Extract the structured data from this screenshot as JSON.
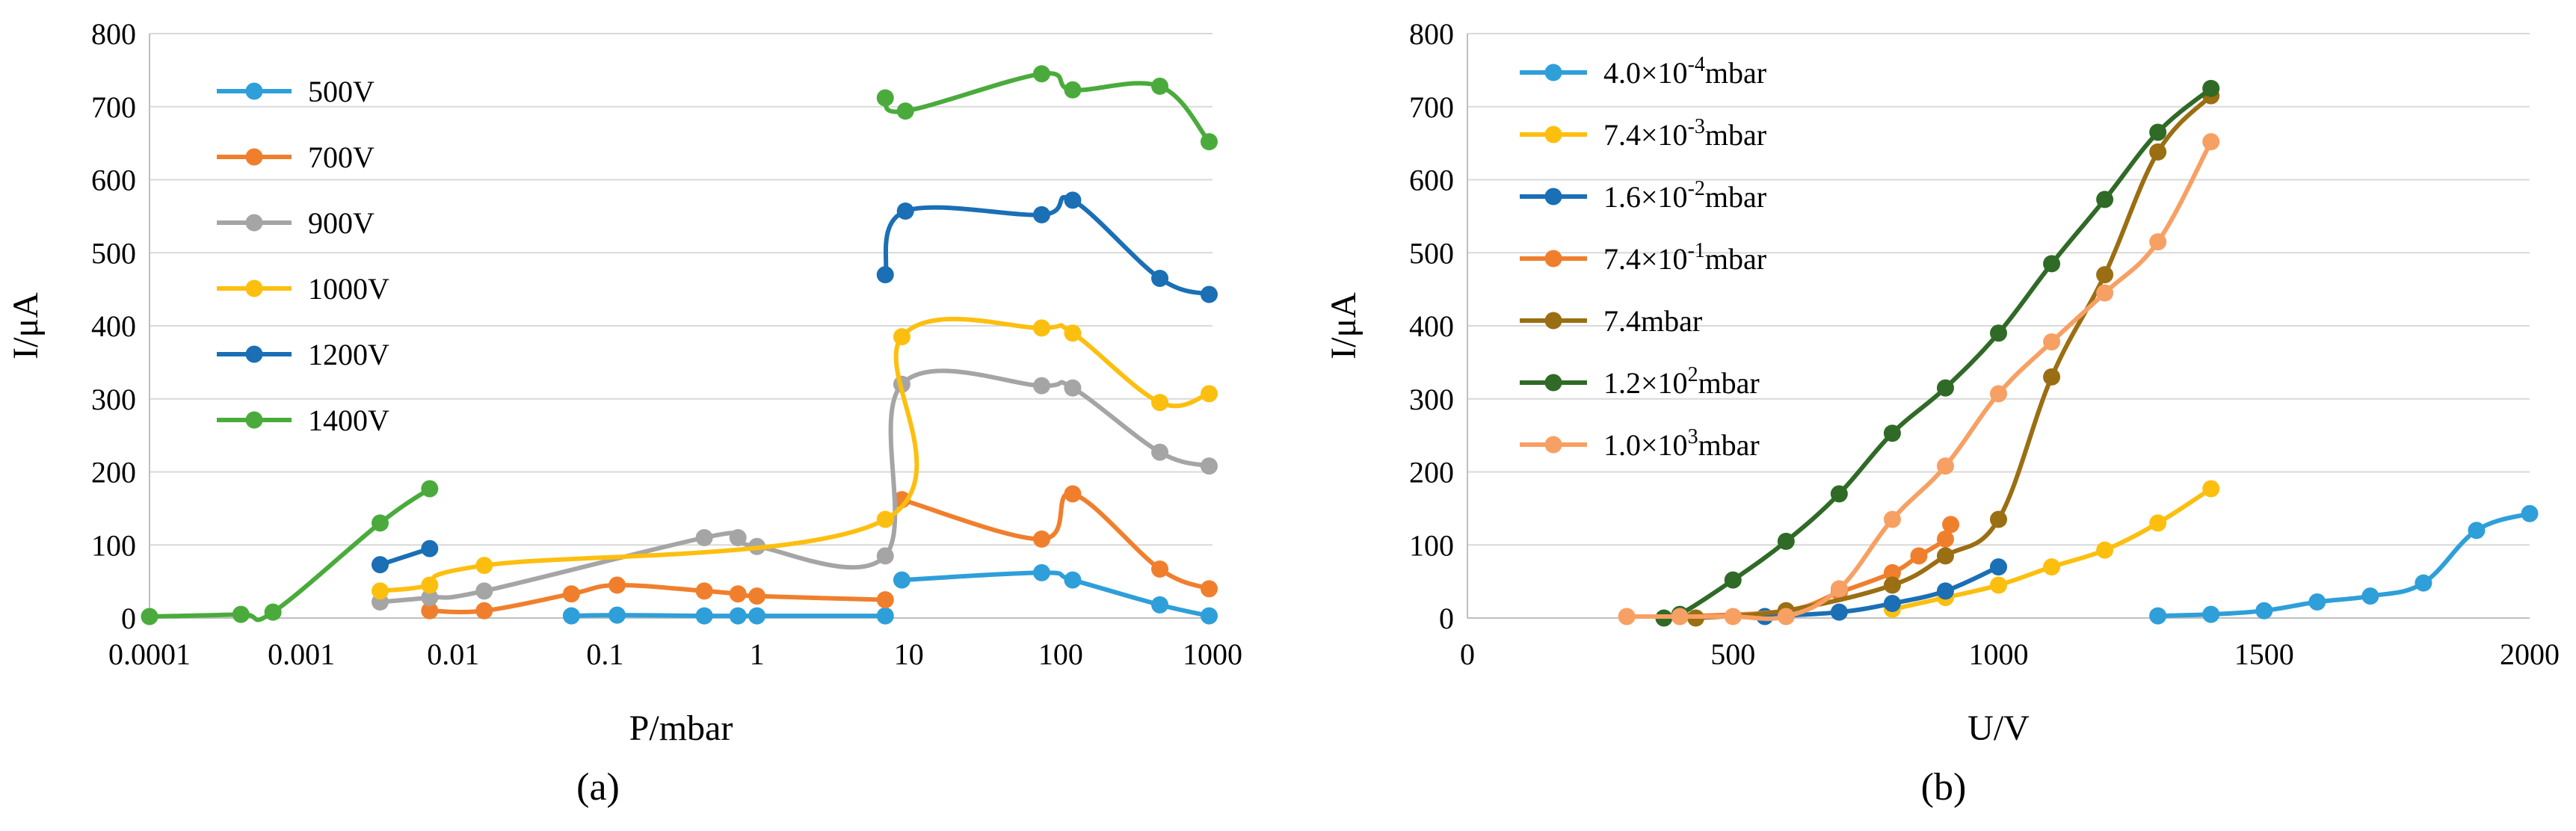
{
  "chart_data": [
    {
      "type": "line",
      "panel_label": "(a)",
      "xlabel": "P/mbar",
      "ylabel": "I/μA",
      "xscale": "log",
      "xlim": [
        0.0001,
        1000
      ],
      "ylim": [
        0,
        800
      ],
      "xticks": [
        "0.0001",
        "0.001",
        "0.01",
        "0.1",
        "1",
        "10",
        "100",
        "1000"
      ],
      "yticks": [
        "0",
        "100",
        "200",
        "300",
        "400",
        "500",
        "600",
        "700",
        "800"
      ],
      "legend_position": "top-left",
      "series": [
        {
          "name": "500V",
          "color": "#2e9fd9",
          "segments": [
            [
              [
                0.06,
                3
              ],
              [
                0.12,
                4
              ],
              [
                0.45,
                3
              ],
              [
                0.75,
                3
              ],
              [
                1.0,
                3
              ],
              [
                7.0,
                3
              ]
            ],
            [
              [
                9.0,
                52
              ],
              [
                75,
                62
              ],
              [
                120,
                52
              ],
              [
                450,
                18
              ],
              [
                950,
                3
              ]
            ]
          ]
        },
        {
          "name": "700V",
          "color": "#f07f2d",
          "segments": [
            [
              [
                0.007,
                10
              ],
              [
                0.016,
                10
              ],
              [
                0.06,
                33
              ],
              [
                0.12,
                45
              ],
              [
                0.45,
                37
              ],
              [
                0.75,
                33
              ],
              [
                1.0,
                30
              ],
              [
                7.0,
                25
              ]
            ],
            [
              [
                9.0,
                162
              ],
              [
                75,
                108
              ],
              [
                120,
                170
              ],
              [
                450,
                67
              ],
              [
                950,
                40
              ]
            ]
          ]
        },
        {
          "name": "900V",
          "color": "#a5a5a5",
          "segments": [
            [
              [
                0.0033,
                22
              ],
              [
                0.007,
                28
              ],
              [
                0.016,
                37
              ],
              [
                0.45,
                110
              ],
              [
                0.75,
                110
              ],
              [
                1.0,
                98
              ],
              [
                7.0,
                85
              ],
              [
                9.0,
                320
              ],
              [
                75,
                318
              ],
              [
                120,
                315
              ],
              [
                450,
                227
              ],
              [
                950,
                208
              ]
            ]
          ]
        },
        {
          "name": "1000V",
          "color": "#fdbf0f",
          "segments": [
            [
              [
                0.0033,
                37
              ],
              [
                0.007,
                45
              ],
              [
                0.016,
                72
              ],
              [
                7.0,
                135
              ],
              [
                9.0,
                385
              ],
              [
                75,
                397
              ],
              [
                120,
                390
              ],
              [
                450,
                295
              ],
              [
                950,
                307
              ]
            ]
          ]
        },
        {
          "name": "1200V",
          "color": "#1a6fb5",
          "segments": [
            [
              [
                0.0033,
                73
              ],
              [
                0.007,
                95
              ]
            ],
            [
              [
                7.0,
                470
              ],
              [
                9.5,
                557
              ],
              [
                75,
                552
              ],
              [
                120,
                572
              ],
              [
                450,
                465
              ],
              [
                950,
                443
              ]
            ]
          ]
        },
        {
          "name": "1400V",
          "color": "#4aab3c",
          "segments": [
            [
              [
                0.0001,
                2
              ],
              [
                0.0004,
                5
              ],
              [
                0.00065,
                8
              ],
              [
                0.0033,
                130
              ],
              [
                0.007,
                177
              ]
            ],
            [
              [
                7.0,
                712
              ],
              [
                9.5,
                694
              ],
              [
                75,
                745
              ],
              [
                120,
                723
              ],
              [
                450,
                728
              ],
              [
                950,
                652
              ]
            ]
          ]
        }
      ]
    },
    {
      "type": "line",
      "panel_label": "(b)",
      "xlabel": "U/V",
      "ylabel": "I/μA",
      "xscale": "linear",
      "xlim": [
        0,
        2000
      ],
      "ylim": [
        0,
        800
      ],
      "xticks": [
        "0",
        "500",
        "1000",
        "1500",
        "2000"
      ],
      "yticks": [
        "0",
        "100",
        "200",
        "300",
        "400",
        "500",
        "600",
        "700",
        "800"
      ],
      "legend_position": "top-left",
      "series": [
        {
          "name": "4.0×10",
          "sup": "-4",
          "unit": "mbar",
          "color": "#2e9fd9",
          "segments": [
            [
              [
                1300,
                3
              ],
              [
                1400,
                5
              ],
              [
                1500,
                10
              ],
              [
                1600,
                22
              ],
              [
                1700,
                30
              ],
              [
                1800,
                48
              ],
              [
                1900,
                120
              ],
              [
                2000,
                143
              ]
            ]
          ]
        },
        {
          "name": "7.4×10",
          "sup": "-3",
          "unit": "mbar",
          "color": "#fdbf0f",
          "segments": [
            [
              [
                800,
                12
              ],
              [
                900,
                28
              ],
              [
                1000,
                45
              ],
              [
                1100,
                70
              ],
              [
                1200,
                93
              ],
              [
                1300,
                130
              ],
              [
                1400,
                177
              ]
            ]
          ]
        },
        {
          "name": "1.6×10",
          "sup": "-2",
          "unit": "mbar",
          "color": "#1a6fb5",
          "segments": [
            [
              [
                560,
                2
              ],
              [
                700,
                8
              ],
              [
                800,
                20
              ],
              [
                900,
                37
              ],
              [
                1000,
                70
              ]
            ]
          ]
        },
        {
          "name": "7.4×10",
          "sup": "-1",
          "unit": "mbar",
          "color": "#f07f2d",
          "segments": [
            [
              [
                400,
                2
              ],
              [
                600,
                10
              ],
              [
                700,
                35
              ],
              [
                800,
                62
              ],
              [
                850,
                85
              ],
              [
                900,
                108
              ],
              [
                910,
                128
              ]
            ]
          ]
        },
        {
          "name": "7.4",
          "sup": "",
          "unit": "mbar",
          "color": "#9a6e12",
          "segments": [
            [
              [
                430,
                0
              ],
              [
                600,
                10
              ],
              [
                800,
                45
              ],
              [
                900,
                85
              ],
              [
                1000,
                135
              ],
              [
                1100,
                330
              ],
              [
                1200,
                470
              ],
              [
                1300,
                638
              ],
              [
                1400,
                715
              ]
            ]
          ]
        },
        {
          "name": "1.2×10",
          "sup": "2",
          "unit": "mbar",
          "color": "#2f6a26",
          "segments": [
            [
              [
                370,
                0
              ],
              [
                400,
                5
              ],
              [
                500,
                52
              ],
              [
                600,
                105
              ],
              [
                700,
                170
              ],
              [
                800,
                253
              ],
              [
                900,
                315
              ],
              [
                1000,
                390
              ],
              [
                1100,
                485
              ],
              [
                1200,
                573
              ],
              [
                1300,
                665
              ],
              [
                1400,
                725
              ]
            ]
          ]
        },
        {
          "name": "1.0×10",
          "sup": "3",
          "unit": "mbar",
          "color": "#f7a064",
          "segments": [
            [
              [
                300,
                2
              ],
              [
                400,
                2
              ],
              [
                500,
                2
              ],
              [
                600,
                2
              ],
              [
                700,
                40
              ],
              [
                800,
                135
              ],
              [
                900,
                208
              ],
              [
                1000,
                307
              ],
              [
                1100,
                378
              ],
              [
                1200,
                445
              ],
              [
                1300,
                515
              ],
              [
                1400,
                652
              ]
            ]
          ]
        }
      ]
    }
  ]
}
